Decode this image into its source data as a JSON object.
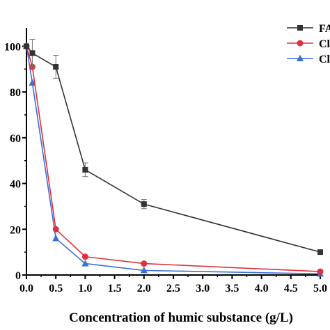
{
  "chart_data": {
    "type": "line",
    "xlabel": "Concentration of humic substance (g/L)",
    "ylabel": "",
    "xlim": [
      0.0,
      5.0
    ],
    "ylim": [
      0,
      105
    ],
    "x_ticks": [
      "0.0",
      "0.5",
      "1.0",
      "1.5",
      "2.0",
      "2.5",
      "3.0",
      "3.5",
      "4.0",
      "4.5",
      "5.0"
    ],
    "y_ticks": [
      "0",
      "20",
      "40",
      "60",
      "80",
      "100"
    ],
    "legend_position": "top-right",
    "series": [
      {
        "name": "FA",
        "color": "#333333",
        "marker": "square",
        "x": [
          0.0,
          0.1,
          0.5,
          1.0,
          2.0,
          5.0
        ],
        "y": [
          100,
          97,
          91,
          46,
          31,
          10
        ],
        "error": [
          0,
          6,
          5,
          3,
          2,
          0
        ]
      },
      {
        "name": "Cl",
        "color": "#e0303a",
        "marker": "circle",
        "x": [
          0.0,
          0.1,
          0.5,
          1.0,
          2.0,
          5.0
        ],
        "y": [
          100,
          91,
          20,
          8,
          5,
          1.5
        ],
        "error": [
          0,
          0,
          0,
          0,
          0,
          0
        ]
      },
      {
        "name": "Cl",
        "color": "#3a6fd8",
        "marker": "triangle",
        "x": [
          0.0,
          0.1,
          0.5,
          1.0,
          2.0,
          5.0
        ],
        "y": [
          100,
          84,
          16,
          5,
          2,
          0.5
        ],
        "error": [
          0,
          0,
          0,
          0,
          0,
          0
        ]
      }
    ]
  }
}
